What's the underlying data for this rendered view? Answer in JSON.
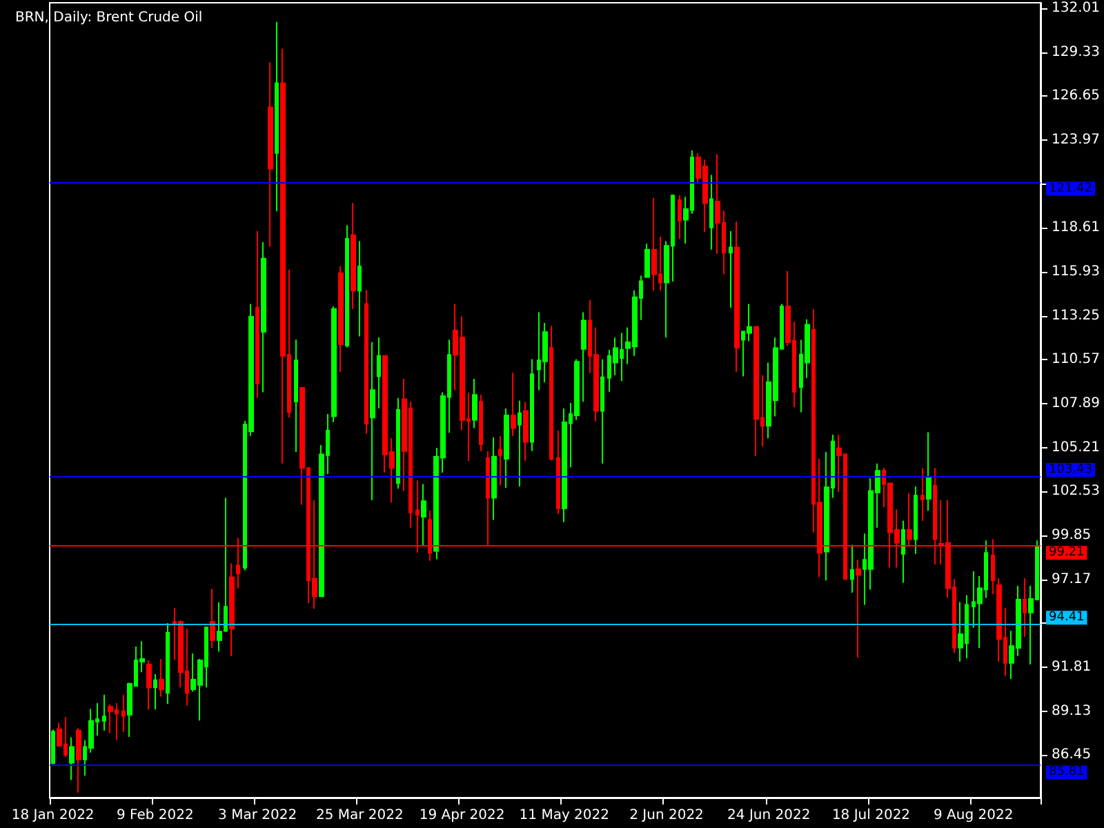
{
  "chart_data": {
    "type": "candlestick",
    "title": "BRN, Daily: Brent Crude Oil",
    "categories": [
      "18 Jan 2022",
      null,
      null,
      null,
      null,
      null,
      null,
      null,
      null,
      null,
      null,
      null,
      null,
      null,
      null,
      null,
      "9 Feb 2022",
      null,
      null,
      null,
      null,
      null,
      null,
      null,
      null,
      null,
      null,
      null,
      null,
      null,
      null,
      null,
      "3 Mar 2022",
      null,
      null,
      null,
      null,
      null,
      null,
      null,
      null,
      null,
      null,
      null,
      null,
      null,
      null,
      null,
      "25 Mar 2022",
      null,
      null,
      null,
      null,
      null,
      null,
      null,
      null,
      null,
      null,
      null,
      null,
      null,
      null,
      null,
      "19 Apr 2022",
      null,
      null,
      null,
      null,
      null,
      null,
      null,
      null,
      null,
      null,
      null,
      null,
      null,
      null,
      null,
      "11 May 2022",
      null,
      null,
      null,
      null,
      null,
      null,
      null,
      null,
      null,
      null,
      null,
      null,
      null,
      null,
      null,
      "2 Jun 2022",
      null,
      null,
      null,
      null,
      null,
      null,
      null,
      null,
      null,
      null,
      null,
      null,
      null,
      null,
      null,
      "24 Jun 2022",
      null,
      null,
      null,
      null,
      null,
      null,
      null,
      null,
      null,
      null,
      null,
      null,
      null,
      null,
      null,
      "18 Jul 2022",
      null,
      null,
      null,
      null,
      null,
      null,
      null,
      null,
      null,
      null,
      null,
      null,
      null,
      null,
      null,
      "9 Aug 2022",
      null,
      null,
      null,
      null,
      null,
      null,
      null,
      null,
      null,
      null
    ],
    "colors": [
      "#00ff00",
      "#ff0000",
      "#ff0000",
      "#00ff00",
      "#ff0000",
      "#00ff00",
      "#00ff00",
      "#00ff00",
      "#00ff00",
      "#ff0000",
      "#ff0000",
      "#ff0000",
      "#00ff00",
      "#00ff00",
      "#00ff00",
      "#ff0000",
      "#00ff00",
      "#ff0000",
      "#00ff00",
      "#ff0000",
      "#ff0000",
      "#ff0000",
      "#00ff00",
      "#00ff00",
      "#00ff00",
      "#ff0000",
      "#00ff00",
      "#00ff00",
      "#ff0000",
      "#ff0000",
      "#00ff00",
      "#00ff00",
      "#ff0000",
      "#00ff00",
      "#ff0000",
      "#00ff00",
      "#ff0000",
      "#ff0000",
      "#00ff00",
      "#ff0000",
      "#ff0000",
      "#ff0000",
      "#00ff00",
      "#00ff00",
      "#00ff00",
      "#ff0000",
      "#00ff00",
      "#ff0000",
      "#00ff00",
      "#ff0000",
      "#00ff00",
      "#00ff00",
      "#ff0000",
      "#ff0000",
      "#00ff00",
      "#ff0000",
      "#ff0000",
      "#ff0000",
      "#00ff00",
      "#ff0000",
      "#00ff00",
      "#00ff00",
      "#00ff00",
      "#ff0000",
      "#ff0000",
      "#ff0000",
      "#00ff00",
      "#ff0000",
      "#ff0000",
      "#00ff00",
      "#ff0000",
      "#00ff00",
      "#ff0000",
      "#00ff00",
      "#ff0000",
      "#00ff00",
      "#00ff00",
      "#00ff00",
      "#ff0000",
      "#ff0000",
      "#00ff00",
      "#00ff00",
      "#00ff00",
      "#00ff00",
      "#ff0000",
      "#ff0000",
      "#00ff00",
      "#00ff00",
      "#00ff00",
      "#00ff00",
      "#00ff00",
      "#00ff00",
      "#00ff00",
      "#00ff00",
      "#ff0000",
      "#ff0000",
      "#00ff00",
      "#00ff00",
      "#ff0000",
      "#00ff00",
      "#00ff00",
      "#ff0000",
      "#ff0000",
      "#00ff00",
      "#ff0000",
      "#ff0000",
      "#00ff00",
      "#ff0000",
      "#00ff00",
      "#00ff00",
      "#ff0000",
      "#ff0000",
      "#00ff00",
      "#00ff00",
      "#00ff00",
      "#ff0000",
      "#ff0000",
      "#00ff00",
      "#00ff00",
      "#ff0000",
      "#ff0000",
      "#00ff00",
      "#00ff00",
      "#ff0000",
      "#ff0000",
      "#00ff00",
      "#ff0000",
      "#00ff00",
      "#00ff00",
      "#00ff00",
      "#ff0000",
      "#ff0000",
      "#ff0000",
      "#00ff00",
      "#ff0000",
      "#00ff00",
      "#ff0000",
      "#00ff00",
      "#ff0000",
      "#ff0000",
      "#ff0000",
      "#ff0000",
      "#00ff00",
      "#00ff00",
      "#00ff00",
      "#00ff00",
      "#00ff00",
      "#ff0000",
      "#ff0000",
      "#ff0000",
      "#00ff00",
      "#00ff00",
      "#ff0000",
      "#00ff00",
      "#00ff00"
    ],
    "ohlc": [
      [
        85.95,
        88.0,
        85.9,
        87.88
      ],
      [
        88.03,
        88.42,
        86.96,
        87.02
      ],
      [
        87.1,
        88.78,
        86.32,
        86.46
      ],
      [
        85.98,
        87.52,
        84.92,
        86.94
      ],
      [
        87.94,
        88.08,
        84.16,
        86.18
      ],
      [
        86.18,
        87.36,
        85.2,
        86.94
      ],
      [
        86.88,
        89.26,
        86.6,
        88.53
      ],
      [
        88.48,
        89.62,
        87.64,
        88.64
      ],
      [
        88.53,
        90.13,
        87.94,
        88.81
      ],
      [
        89.4,
        89.54,
        87.8,
        89.12
      ],
      [
        89.2,
        89.62,
        87.38,
        88.98
      ],
      [
        89.12,
        90.13,
        87.86,
        88.84
      ],
      [
        88.9,
        90.86,
        87.55,
        90.8
      ],
      [
        90.66,
        93.07,
        90.66,
        92.23
      ],
      [
        92.14,
        93.4,
        91.5,
        92.31
      ],
      [
        91.98,
        92.23,
        89.23,
        90.58
      ],
      [
        90.58,
        91.39,
        89.23,
        91.02
      ],
      [
        91.05,
        92.31,
        90.02,
        90.46
      ],
      [
        90.24,
        94.5,
        89.57,
        93.91
      ],
      [
        94.58,
        95.42,
        92.26,
        94.44
      ],
      [
        94.58,
        94.66,
        90.58,
        91.5
      ],
      [
        91.56,
        94.16,
        89.48,
        90.24
      ],
      [
        90.46,
        92.65,
        90.32,
        91.05
      ],
      [
        90.72,
        92.31,
        88.56,
        92.23
      ],
      [
        91.84,
        94.24,
        90.58,
        94.24
      ],
      [
        94.58,
        96.6,
        92.98,
        93.46
      ],
      [
        93.46,
        95.76,
        92.76,
        93.99
      ],
      [
        94.02,
        102.14,
        93.96,
        95.5
      ],
      [
        97.3,
        98.14,
        92.48,
        94.16
      ],
      [
        98.02,
        99.7,
        96.62,
        97.52
      ],
      [
        97.88,
        106.84,
        97.72,
        106.62
      ],
      [
        106.2,
        113.97,
        105.92,
        113.19
      ],
      [
        113.75,
        118.42,
        108.24,
        109.13
      ],
      [
        112.27,
        117.75,
        108.58,
        116.74
      ],
      [
        125.97,
        128.71,
        117.47,
        122.22
      ],
      [
        123.18,
        131.18,
        119.62,
        127.45
      ],
      [
        127.45,
        129.55,
        104.24,
        110.81
      ],
      [
        110.87,
        116.07,
        107.04,
        107.37
      ],
      [
        108.02,
        111.79,
        104.94,
        110.53
      ],
      [
        108.86,
        108.86,
        101.72,
        103.96
      ],
      [
        103.96,
        103.96,
        95.71,
        97.11
      ],
      [
        97.22,
        102.0,
        95.37,
        96.13
      ],
      [
        96.13,
        105.36,
        96.13,
        104.8
      ],
      [
        104.74,
        107.26,
        103.6,
        106.25
      ],
      [
        107.12,
        113.83,
        106.76,
        113.67
      ],
      [
        115.85,
        116.27,
        109.83,
        111.51
      ],
      [
        111.43,
        118.78,
        111.32,
        117.95
      ],
      [
        118.17,
        120.13,
        113.67,
        114.78
      ],
      [
        114.78,
        117.8,
        111.99,
        116.27
      ],
      [
        113.97,
        114.81,
        106.06,
        106.67
      ],
      [
        107.04,
        111.65,
        102.0,
        108.72
      ],
      [
        109.55,
        111.93,
        107.6,
        110.81
      ],
      [
        110.81,
        110.81,
        103.68,
        104.8
      ],
      [
        104.94,
        105.78,
        101.86,
        103.96
      ],
      [
        103.04,
        108.24,
        102.7,
        107.51
      ],
      [
        108.16,
        109.41,
        102.56,
        105.0
      ],
      [
        107.6,
        108.02,
        100.32,
        101.25
      ],
      [
        101.38,
        103.2,
        98.8,
        101.1
      ],
      [
        100.99,
        102.98,
        99.2,
        101.94
      ],
      [
        100.8,
        101.36,
        98.3,
        98.78
      ],
      [
        98.9,
        105.2,
        98.4,
        104.66
      ],
      [
        104.6,
        108.58,
        103.68,
        108.35
      ],
      [
        108.29,
        111.79,
        106.11,
        110.87
      ],
      [
        112.35,
        113.97,
        108.71,
        110.87
      ],
      [
        111.93,
        113.21,
        106.28,
        106.89
      ],
      [
        106.95,
        108.57,
        104.38,
        106.84
      ],
      [
        106.9,
        109.41,
        106.39,
        108.43
      ],
      [
        108.01,
        108.43,
        104.99,
        105.41
      ],
      [
        104.57,
        104.99,
        99.2,
        102.14
      ],
      [
        102.14,
        105.83,
        100.8,
        104.66
      ],
      [
        105.08,
        105.91,
        102.9,
        104.74
      ],
      [
        104.52,
        107.59,
        102.75,
        107.17
      ],
      [
        107.17,
        109.78,
        105.91,
        106.39
      ],
      [
        106.61,
        108.07,
        102.84,
        107.31
      ],
      [
        107.45,
        108.0,
        104.38,
        105.55
      ],
      [
        105.55,
        110.61,
        104.99,
        109.69
      ],
      [
        109.97,
        113.47,
        108.71,
        110.53
      ],
      [
        110.47,
        112.82,
        109.19,
        112.26
      ],
      [
        111.29,
        112.63,
        104.43,
        104.52
      ],
      [
        104.57,
        106.25,
        101.16,
        101.5
      ],
      [
        101.5,
        107.59,
        100.66,
        106.75
      ],
      [
        106.69,
        107.93,
        104.01,
        107.26
      ],
      [
        107.17,
        110.61,
        106.89,
        110.45
      ],
      [
        111.23,
        113.47,
        108.01,
        112.96
      ],
      [
        112.96,
        114.22,
        109.75,
        110.81
      ],
      [
        110.87,
        112.54,
        106.81,
        107.45
      ],
      [
        107.45,
        110.59,
        104.24,
        109.5
      ],
      [
        109.46,
        111.17,
        108.62,
        110.81
      ],
      [
        110.39,
        111.92,
        109.63,
        111.28
      ],
      [
        110.67,
        112.2,
        109.27,
        111.17
      ],
      [
        111.28,
        112.54,
        110.3,
        111.64
      ],
      [
        111.37,
        114.8,
        110.81,
        114.38
      ],
      [
        114.33,
        115.7,
        112.99,
        115.36
      ],
      [
        115.61,
        117.66,
        115.56,
        117.29
      ],
      [
        117.29,
        120.45,
        114.78,
        115.78
      ],
      [
        115.78,
        118.08,
        114.8,
        115.28
      ],
      [
        115.28,
        117.8,
        111.92,
        117.52
      ],
      [
        117.52,
        120.65,
        115.34,
        120.59
      ],
      [
        120.31,
        120.59,
        117.94,
        119.06
      ],
      [
        119.11,
        120.51,
        117.66,
        119.76
      ],
      [
        119.7,
        123.34,
        119.48,
        122.92
      ],
      [
        122.92,
        123.17,
        121.3,
        121.66
      ],
      [
        122.36,
        122.78,
        118.36,
        120.12
      ],
      [
        118.64,
        121.85,
        117.29,
        120.37
      ],
      [
        120.23,
        123.11,
        117.04,
        118.92
      ],
      [
        118.92,
        119.67,
        115.78,
        117.1
      ],
      [
        117.1,
        118.41,
        113.74,
        117.43
      ],
      [
        117.43,
        119.0,
        109.83,
        111.31
      ],
      [
        111.78,
        112.34,
        109.55,
        112.29
      ],
      [
        112.2,
        113.97,
        111.7,
        112.57
      ],
      [
        112.57,
        112.57,
        104.7,
        106.95
      ],
      [
        107.03,
        109.63,
        105.27,
        106.53
      ],
      [
        106.53,
        110.39,
        105.77,
        109.21
      ],
      [
        108.09,
        111.92,
        107.11,
        111.28
      ],
      [
        111.23,
        113.97,
        111.23,
        113.83
      ],
      [
        113.83,
        115.98,
        111.42,
        111.64
      ],
      [
        111.73,
        112.9,
        107.67,
        108.62
      ],
      [
        108.9,
        111.78,
        107.36,
        110.89
      ],
      [
        110.39,
        113.04,
        109.46,
        112.71
      ],
      [
        112.4,
        113.66,
        100.04,
        101.77
      ],
      [
        101.86,
        104.52,
        97.3,
        98.78
      ],
      [
        98.86,
        104.94,
        97.1,
        102.78
      ],
      [
        102.75,
        106.0,
        102.14,
        105.58
      ],
      [
        105.16,
        106.0,
        102.5,
        104.74
      ],
      [
        104.79,
        104.85,
        97.16,
        97.19
      ],
      [
        97.19,
        99.28,
        96.35,
        97.75
      ],
      [
        97.8,
        98.36,
        92.4,
        97.44
      ],
      [
        97.8,
        99.96,
        95.62,
        98.36
      ],
      [
        97.8,
        103.34,
        96.54,
        102.56
      ],
      [
        102.47,
        104.24,
        100.32,
        103.8
      ],
      [
        103.8,
        103.96,
        101.58,
        102.97
      ],
      [
        103.03,
        103.03,
        97.89,
        100.04
      ],
      [
        100.18,
        101.44,
        97.89,
        99.4
      ],
      [
        98.72,
        100.74,
        96.96,
        100.18
      ],
      [
        100.18,
        102.42,
        99.2,
        99.62
      ],
      [
        99.62,
        102.84,
        98.72,
        102.28
      ],
      [
        102.28,
        103.96,
        100.74,
        102.05
      ],
      [
        102.08,
        106.14,
        101.35,
        103.4
      ],
      [
        102.89,
        103.96,
        98.08,
        99.62
      ],
      [
        99.34,
        102.0,
        98.08,
        99.28
      ],
      [
        99.4,
        102.0,
        96.04,
        96.63
      ],
      [
        96.68,
        97.19,
        92.68,
        93.0
      ],
      [
        93.0,
        95.79,
        92.15,
        93.83
      ],
      [
        93.27,
        96.21,
        92.35,
        95.62
      ],
      [
        95.51,
        97.66,
        94.22,
        95.79
      ],
      [
        95.7,
        97.38,
        92.99,
        96.63
      ],
      [
        96.54,
        99.54,
        96.04,
        98.78
      ],
      [
        98.64,
        99.62,
        96.26,
        97.1
      ],
      [
        96.82,
        97.24,
        92.15,
        93.52
      ],
      [
        93.61,
        95.42,
        91.28,
        92.07
      ],
      [
        92.07,
        94.03,
        91.09,
        93.1
      ],
      [
        92.99,
        96.77,
        92.49,
        95.93
      ],
      [
        95.93,
        97.24,
        93.66,
        95.14
      ],
      [
        95.14,
        96.77,
        91.98,
        95.98
      ],
      [
        95.93,
        99.54,
        95.9,
        99.21
      ]
    ],
    "ylim": [
      83.85,
      132.35
    ],
    "yticks": [
      132.01,
      129.33,
      126.65,
      123.97,
      {
        "value": 121.29,
        "label": null
      },
      118.61,
      115.93,
      113.25,
      110.57,
      107.89,
      105.21,
      102.53,
      99.85,
      97.17,
      {
        "value": 94.49,
        "label": null
      },
      91.81,
      89.13,
      86.45
    ],
    "ref_lines": [
      {
        "axis": "y",
        "value": 121.42,
        "label": "121.42",
        "color": "#0000ff"
      },
      {
        "axis": "y",
        "value": 103.43,
        "label": "103.43",
        "color": "#0000ff"
      },
      {
        "axis": "y",
        "value": 99.21,
        "label": "99.21",
        "color": "#ff0000"
      },
      {
        "axis": "y",
        "value": 94.41,
        "label": "94.41",
        "color": "#00bfff"
      },
      {
        "axis": "y",
        "value": 85.81,
        "label": "85.81",
        "color": "#0000ff"
      }
    ],
    "grid": false
  }
}
